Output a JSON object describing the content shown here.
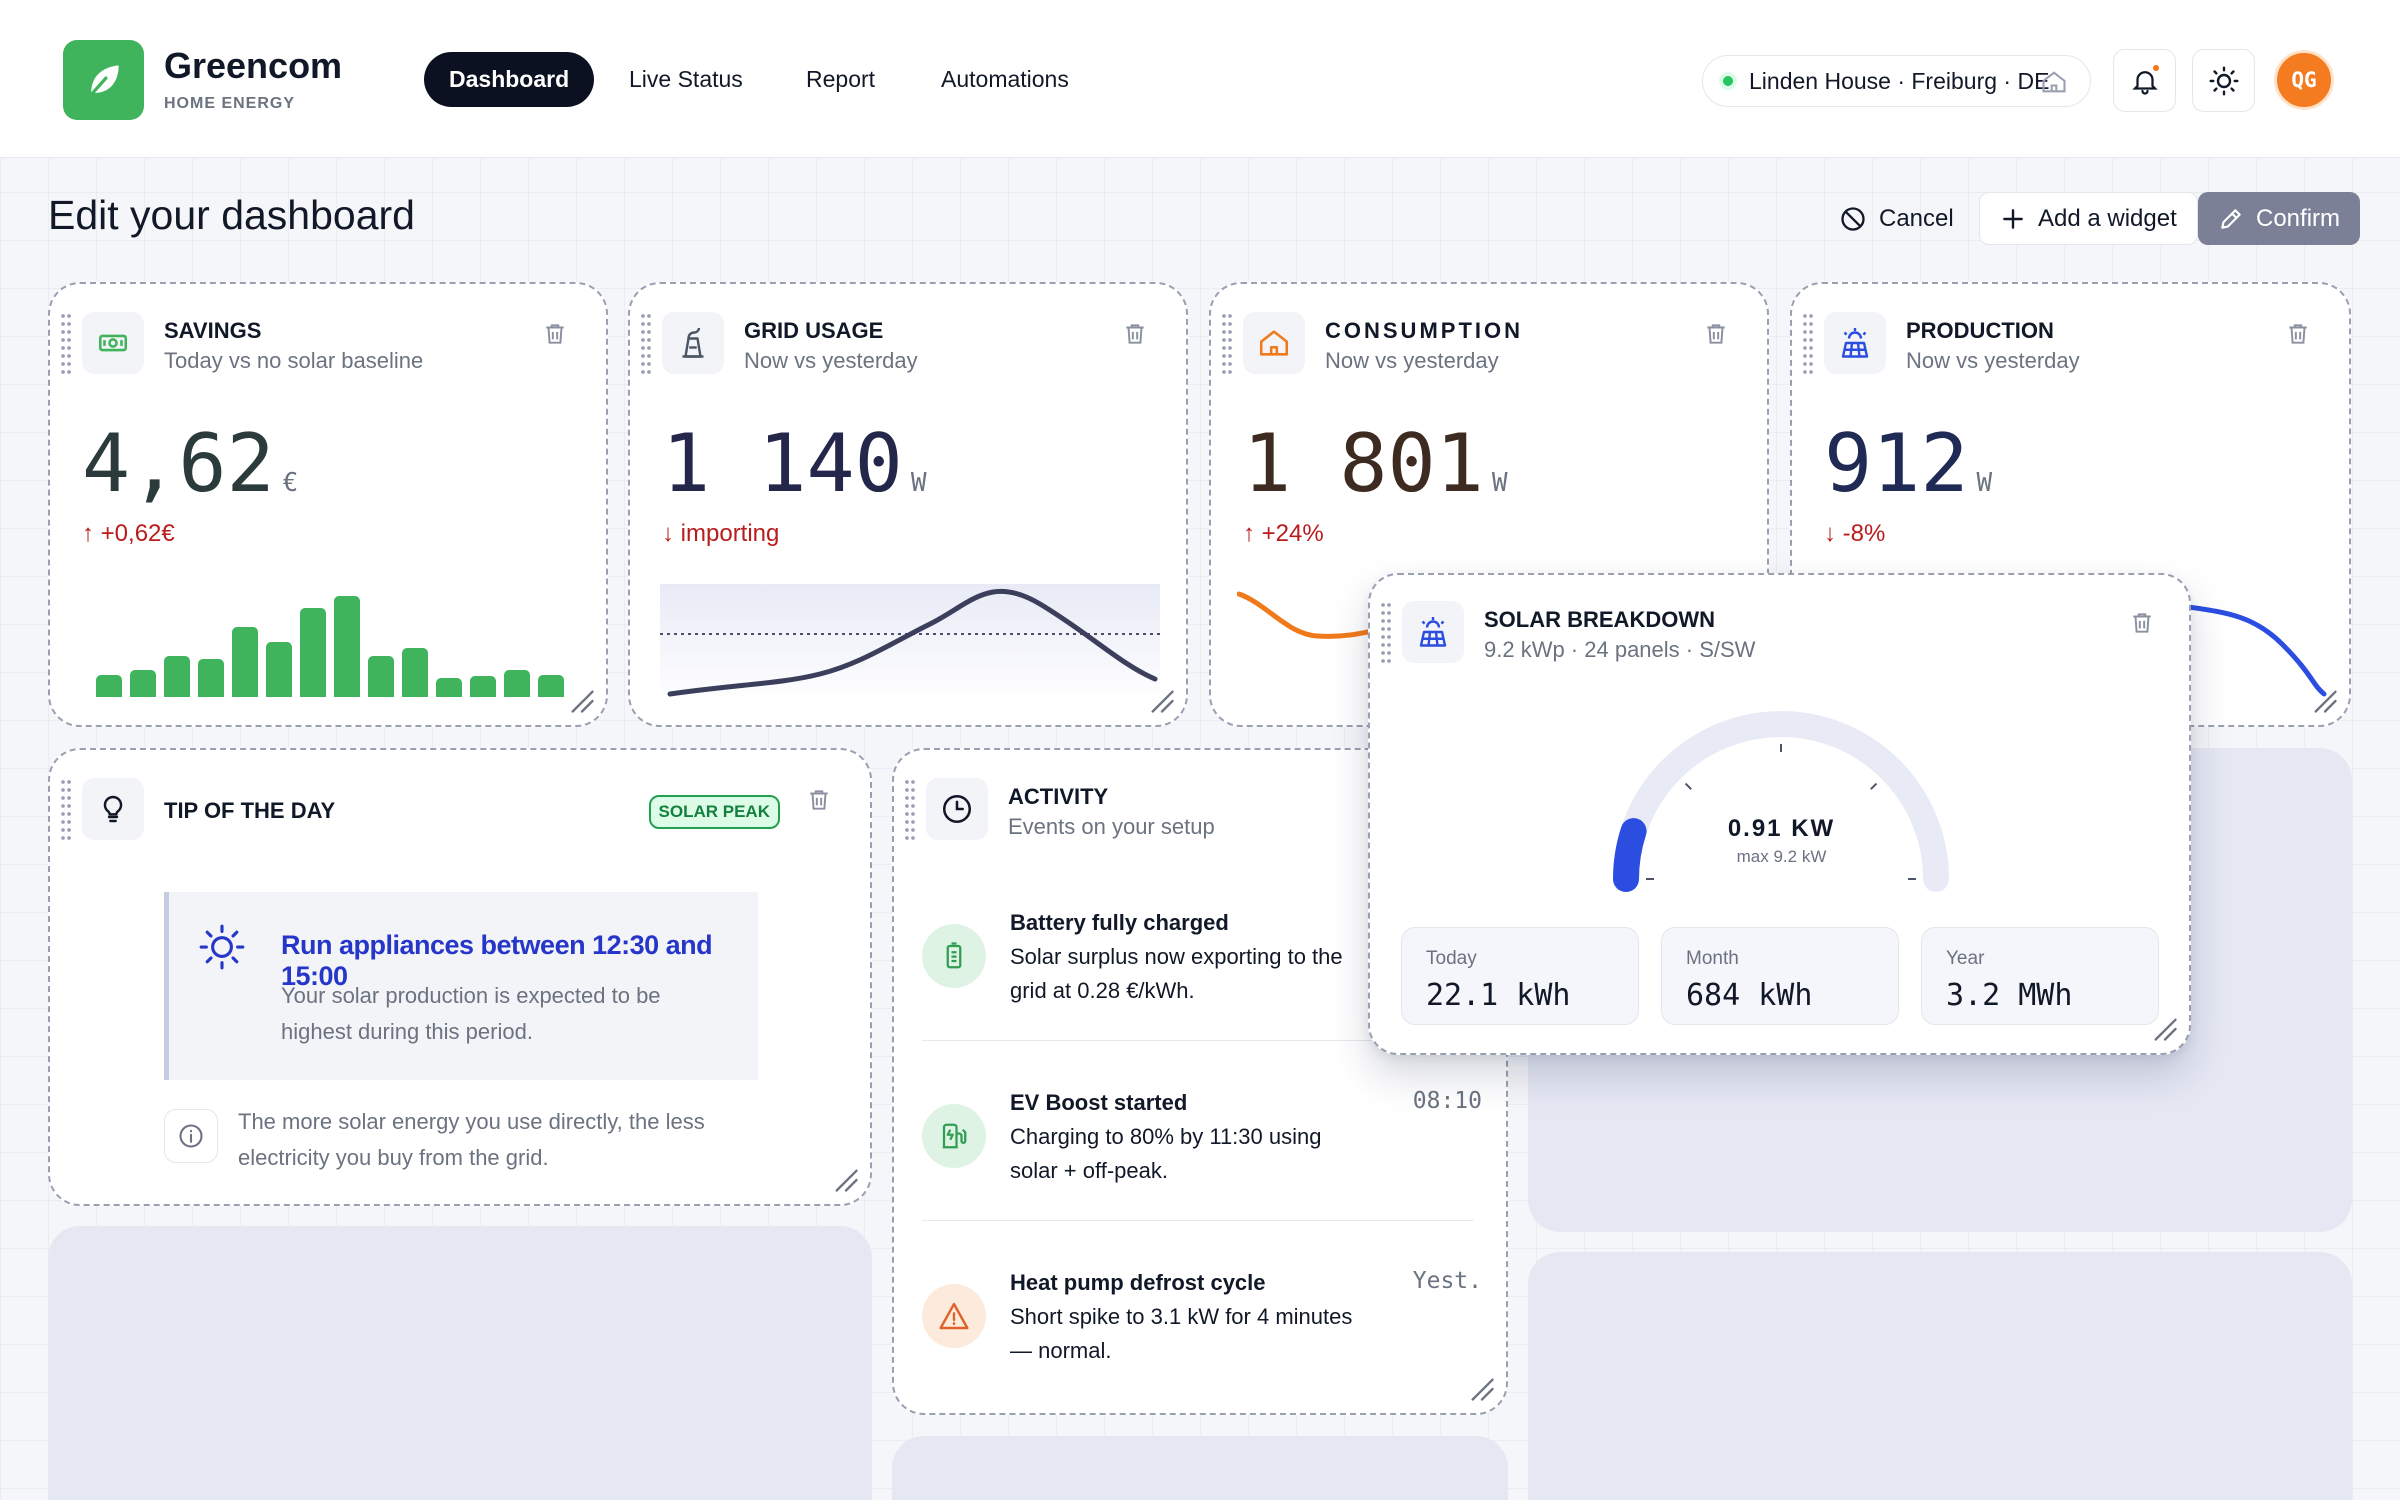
{
  "app": {
    "brand_name": "Greencom",
    "brand_sub": "HOME ENERGY",
    "nav": [
      "Dashboard",
      "Live Status",
      "Report",
      "Automations"
    ],
    "active_nav": "Dashboard",
    "location": "Linden House · Freiburg · DE",
    "avatar_initials": "QG"
  },
  "edit_bar": {
    "title": "Edit your dashboard",
    "cancel": "Cancel",
    "add_widget": "Add a widget",
    "confirm": "Confirm"
  },
  "widgets": {
    "savings": {
      "title": "SAVINGS",
      "subtitle": "Today vs no solar baseline",
      "value": "4,62",
      "unit": "€",
      "delta": "↑ +0,62€",
      "bars": [
        0.14,
        0.17,
        0.26,
        0.24,
        0.44,
        0.35,
        0.56,
        0.64,
        0.26,
        0.31,
        0.12,
        0.13,
        0.17,
        0.14
      ]
    },
    "grid_usage": {
      "title": "GRID USAGE",
      "subtitle": "Now vs yesterday",
      "value": "1 140",
      "unit": "W",
      "delta": "↓ importing"
    },
    "consumption": {
      "title": "CONSUMPTION",
      "subtitle": "Now vs yesterday",
      "value": "1 801",
      "unit": "W",
      "delta": "↑ +24%"
    },
    "production": {
      "title": "PRODUCTION",
      "subtitle": "Now vs yesterday",
      "value": "912",
      "unit": "W",
      "delta": "↓ -8%"
    },
    "tip": {
      "title": "TIP OF THE DAY",
      "badge": "SOLAR PEAK",
      "headline": "Run appliances between 12:30 and 15:00",
      "body": "Your solar production is expected to be highest during this period.",
      "footnote": "The more solar energy you use directly, the less electricity you buy from the grid."
    },
    "activity": {
      "title": "ACTIVITY",
      "subtitle": "Events on your setup",
      "items": [
        {
          "title": "Battery fully charged",
          "text": "Solar surplus now exporting to the grid at 0.28 €/kWh.",
          "time": ""
        },
        {
          "title": "EV Boost started",
          "text": "Charging to 80% by 11:30 using solar + off-peak.",
          "time": "08:10"
        },
        {
          "title": "Heat pump defrost cycle",
          "text": "Short spike to 3.1 kW for 4 minutes — normal.",
          "time": "Yest."
        }
      ]
    },
    "solar_breakdown": {
      "title": "SOLAR BREAKDOWN",
      "subtitle": "9.2 kWp · 24 panels · S/SW",
      "gauge_value": "0.91 KW",
      "gauge_max": "max 9.2 kW",
      "gauge_fraction": 0.1,
      "stats": [
        {
          "label": "Today",
          "value": "22.1 kWh"
        },
        {
          "label": "Month",
          "value": "684 kWh"
        },
        {
          "label": "Year",
          "value": "3.2 MWh"
        }
      ]
    }
  },
  "colors": {
    "brand_green": "#3fb45c",
    "nav_active": "#0b1120",
    "delta_red": "#b91c1c",
    "production_blue": "#2b4de0",
    "consumption_orange": "#f07a1a",
    "confirm_bg": "#7c8096"
  }
}
